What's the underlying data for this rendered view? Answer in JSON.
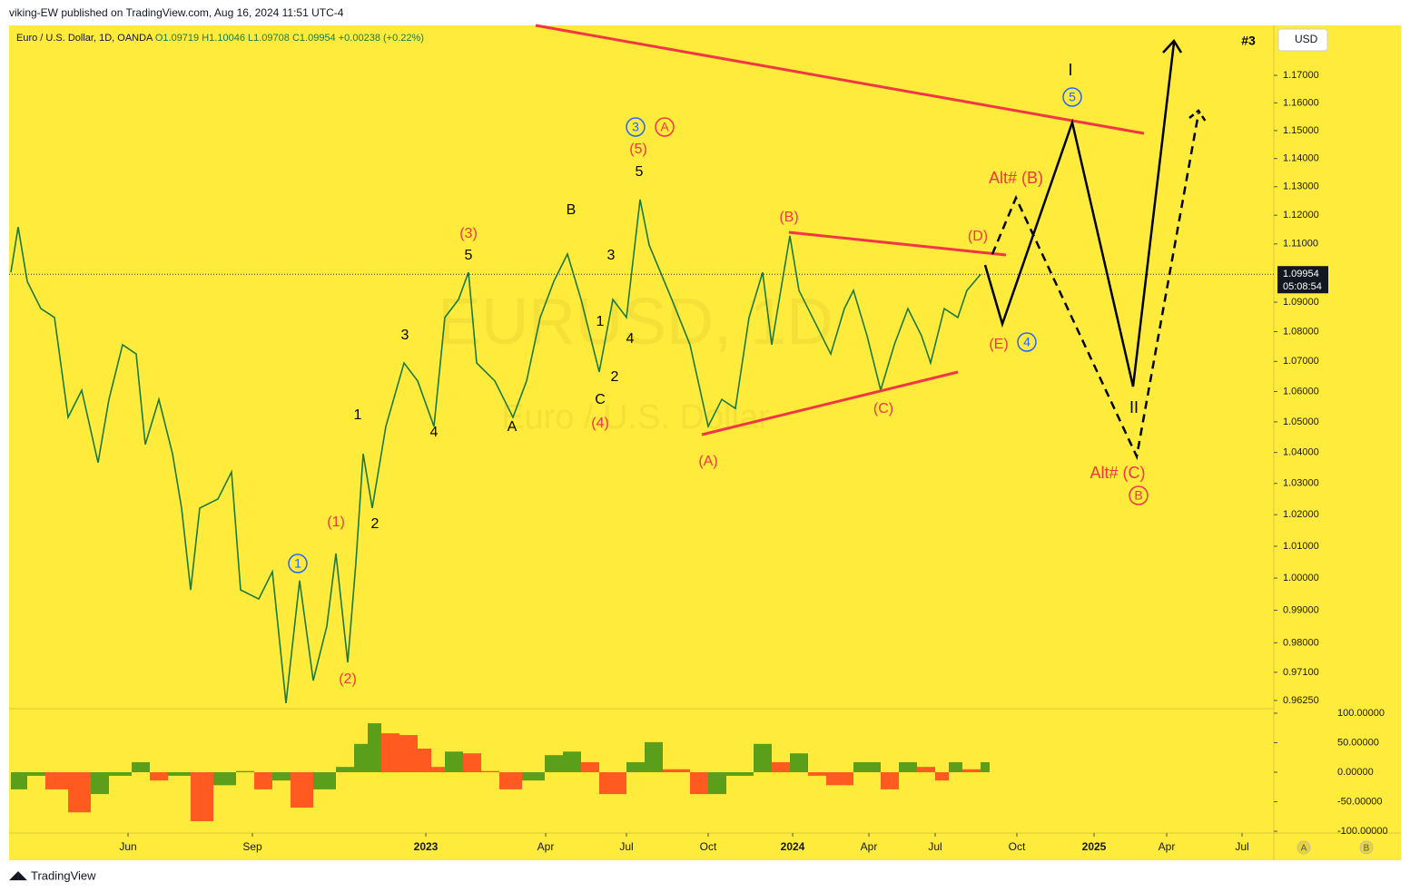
{
  "header": {
    "publisher": "viking-EW published on TradingView.com, Aug 16, 2024 11:51 UTC-4",
    "symbol": "Euro / U.S. Dollar, 1D, OANDA",
    "open": "O1.09719",
    "high": "H1.10046",
    "low": "L1.09708",
    "close": "C1.09954",
    "change": "+0.00238 (+0.22%)",
    "currency": "USD",
    "tag": "#3",
    "countdown": "05:08:54",
    "watermark": "EURUSD, 1D",
    "watermark_sub": "Euro / U.S. Dollar"
  },
  "chart_data": [
    {
      "type": "line",
      "log_scale": true,
      "color": "#111111",
      "last_price": 1.09954,
      "x": [
        2,
        10,
        20,
        35,
        50,
        65,
        80,
        98,
        110,
        125,
        140,
        150,
        165,
        180,
        190,
        200,
        210,
        230,
        245,
        255,
        275,
        290,
        305,
        320,
        335,
        350,
        360,
        373,
        382,
        390,
        400,
        415,
        435,
        450,
        468,
        480,
        495,
        506,
        515,
        535,
        555,
        570,
        585,
        600,
        615,
        630,
        650,
        665,
        680,
        695,
        705,
        730,
        750,
        770,
        785,
        800,
        815,
        830,
        840,
        860,
        870,
        890,
        905,
        920,
        930,
        945,
        960,
        975,
        990,
        1005,
        1015,
        1030,
        1045,
        1055,
        1070
      ],
      "series": [
        {
          "color": "#1a7a3c",
          "values": [
            1.1002,
            1.1159,
            1.0971,
            1.0878,
            1.0848,
            1.0515,
            1.0604,
            1.0367,
            1.0574,
            1.0756,
            1.0725,
            1.0426,
            1.0574,
            1.0396,
            1.0221,
            0.9963,
            1.0221,
            1.025,
            1.0337,
            0.9963,
            0.9935,
            1.002,
            0.9617,
            0.9992,
            0.9685,
            0.9851,
            1.0077,
            0.974,
            1.0048,
            1.0396,
            1.0221,
            1.0485,
            1.0695,
            1.0635,
            1.0485,
            1.0848,
            1.0909,
            1.1002,
            1.0695,
            1.0635,
            1.0515,
            1.0635,
            1.0848,
            1.0971,
            1.1065,
            1.0909,
            1.0665,
            1.0909,
            1.0848,
            1.1255,
            1.1096,
            1.0909,
            1.0756,
            1.0485,
            1.0574,
            1.0544,
            1.0848,
            1.1002,
            1.0756,
            1.1128,
            1.094,
            1.0817,
            1.0725,
            1.0878,
            1.094,
            1.0786,
            1.0604,
            1.0756,
            1.0878,
            1.0786,
            1.0695,
            1.0878,
            1.0848,
            1.094,
            1.0995
          ]
        }
      ],
      "xlim": [
        0,
        1393
      ],
      "ylim": [
        0.9603,
        1.1884
      ],
      "xticks": [
        {
          "value": 131,
          "label": "Jun"
        },
        {
          "value": 268,
          "label": "Sep"
        },
        {
          "value": 459,
          "label": "2023"
        },
        {
          "value": 591,
          "label": "Apr"
        },
        {
          "value": 680,
          "label": "Jul"
        },
        {
          "value": 770,
          "label": "Oct"
        },
        {
          "value": 863,
          "label": "2024"
        },
        {
          "value": 947,
          "label": "Apr"
        },
        {
          "value": 1020,
          "label": "Jul"
        },
        {
          "value": 1110,
          "label": "Oct"
        },
        {
          "value": 1195,
          "label": "2025"
        },
        {
          "value": 1275,
          "label": "Apr"
        },
        {
          "value": 1358,
          "label": "Jul"
        }
      ],
      "yticks": [
        {
          "value": 1.17,
          "label": "1.17000"
        },
        {
          "value": 1.16,
          "label": "1.16000"
        },
        {
          "value": 1.15,
          "label": "1.15000"
        },
        {
          "value": 1.14,
          "label": "1.14000"
        },
        {
          "value": 1.13,
          "label": "1.13000"
        },
        {
          "value": 1.12,
          "label": "1.12000"
        },
        {
          "value": 1.11,
          "label": "1.11000"
        },
        {
          "value": 1.09,
          "label": "1.09000"
        },
        {
          "value": 1.08,
          "label": "1.08000"
        },
        {
          "value": 1.07,
          "label": "1.07000"
        },
        {
          "value": 1.06,
          "label": "1.06000"
        },
        {
          "value": 1.05,
          "label": "1.05000"
        },
        {
          "value": 1.04,
          "label": "1.04000"
        },
        {
          "value": 1.03,
          "label": "1.03000"
        },
        {
          "value": 1.02,
          "label": "1.02000"
        },
        {
          "value": 1.01,
          "label": "1.01000"
        },
        {
          "value": 1.0,
          "label": "1.00000"
        },
        {
          "value": 0.99,
          "label": "0.99000"
        },
        {
          "value": 0.98,
          "label": "0.98000"
        },
        {
          "value": 0.971,
          "label": "0.97100"
        },
        {
          "value": 0.9625,
          "label": "0.96250"
        }
      ]
    },
    {
      "type": "bar",
      "colors": [
        "#5a9e1a",
        "#ff5a1f"
      ],
      "x": [
        2,
        20,
        40,
        65,
        90,
        110,
        135,
        155,
        175,
        200,
        225,
        250,
        270,
        290,
        310,
        335,
        360,
        380,
        395,
        410,
        430,
        450,
        465,
        480,
        500,
        520,
        540,
        565,
        590,
        610,
        630,
        650,
        680,
        700,
        720,
        750,
        770,
        790,
        820,
        840,
        860,
        880,
        900,
        930,
        960,
        980,
        1000,
        1020,
        1035,
        1050,
        1070
      ],
      "values": [
        -29,
        -6,
        -29,
        -68,
        -37,
        -6,
        17,
        -14,
        -6,
        -83,
        -22,
        2,
        -29,
        -14,
        -60,
        -29,
        9,
        48,
        83,
        66,
        63,
        40,
        9,
        35,
        32,
        2,
        -29,
        -14,
        29,
        35,
        17,
        -37,
        17,
        51,
        5,
        -37,
        -37,
        -6,
        48,
        17,
        32,
        -6,
        -22,
        17,
        -29,
        17,
        9,
        -14,
        17,
        5,
        17
      ],
      "xlim": [
        0,
        1393
      ],
      "ylim": [
        -103,
        104.6
      ],
      "yticks": [
        {
          "value": 100,
          "label": "100.00000"
        },
        {
          "value": 50,
          "label": "50.00000"
        },
        {
          "value": 0,
          "label": "0.00000"
        },
        {
          "value": -50,
          "label": "-50.00000"
        },
        {
          "value": -100,
          "label": "-100.00000"
        }
      ]
    }
  ],
  "annotations": [
    "1",
    "2",
    "3",
    "4",
    "5",
    "A",
    "B",
    "C",
    "1",
    "2",
    "3",
    "4",
    "5",
    "(1)",
    "(2)",
    "(3)",
    "(4)",
    "(5)",
    "(A)",
    "(B)",
    "(C)",
    "(D)",
    "(E)",
    "Alt# (B)",
    "Alt# (C)",
    "I",
    "II"
  ],
  "circled": [
    "1",
    "3",
    "5",
    "4",
    "A",
    "B"
  ],
  "buttons": [
    "A",
    "B"
  ],
  "footer": "TradingView"
}
